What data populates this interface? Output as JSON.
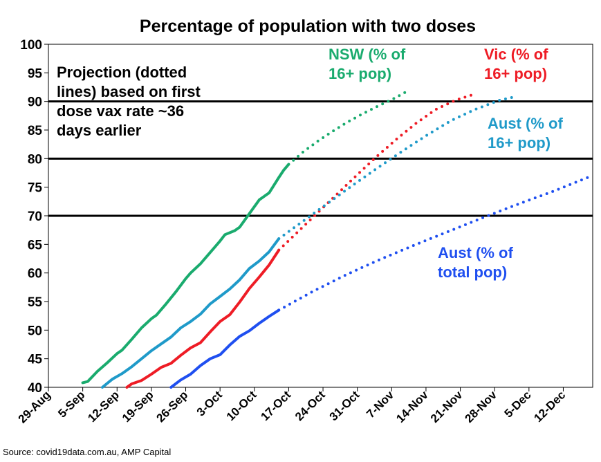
{
  "chart_data": {
    "type": "line",
    "title": "Percentage of population with two doses",
    "source": "Source: covid19data.com.au, AMP Capital",
    "x_axis": {
      "type": "date",
      "range": [
        "2021-08-29",
        "2021-12-18"
      ],
      "ticks": [
        {
          "date": "2021-08-29",
          "label": "29-Aug"
        },
        {
          "date": "2021-09-05",
          "label": "5-Sep"
        },
        {
          "date": "2021-09-12",
          "label": "12-Sep"
        },
        {
          "date": "2021-09-19",
          "label": "19-Sep"
        },
        {
          "date": "2021-09-26",
          "label": "26-Sep"
        },
        {
          "date": "2021-10-03",
          "label": "3-Oct"
        },
        {
          "date": "2021-10-10",
          "label": "10-Oct"
        },
        {
          "date": "2021-10-17",
          "label": "17-Oct"
        },
        {
          "date": "2021-10-24",
          "label": "24-Oct"
        },
        {
          "date": "2021-10-31",
          "label": "31-Oct"
        },
        {
          "date": "2021-11-07",
          "label": "7-Nov"
        },
        {
          "date": "2021-11-14",
          "label": "14-Nov"
        },
        {
          "date": "2021-11-21",
          "label": "21-Nov"
        },
        {
          "date": "2021-11-28",
          "label": "28-Nov"
        },
        {
          "date": "2021-12-05",
          "label": "5-Dec"
        },
        {
          "date": "2021-12-12",
          "label": "12-Dec"
        }
      ]
    },
    "y_axis": {
      "range": [
        40,
        100
      ],
      "ticks": [
        "40",
        "45",
        "50",
        "55",
        "60",
        "65",
        "70",
        "75",
        "80",
        "85",
        "90",
        "95",
        "100"
      ]
    },
    "grid": false,
    "reference_lines": [
      70,
      80,
      90
    ],
    "series": [
      {
        "name": "NSW (% of 16+ pop)",
        "color": "#1aab6e",
        "actual": [
          [
            "2021-09-05",
            40.8
          ],
          [
            "2021-09-06",
            41.0
          ],
          [
            "2021-09-08",
            42.8
          ],
          [
            "2021-09-10",
            44.3
          ],
          [
            "2021-09-12",
            45.9
          ],
          [
            "2021-09-13",
            46.5
          ],
          [
            "2021-09-15",
            48.4
          ],
          [
            "2021-09-17",
            50.4
          ],
          [
            "2021-09-19",
            52.0
          ],
          [
            "2021-09-20",
            52.6
          ],
          [
            "2021-09-22",
            54.6
          ],
          [
            "2021-09-24",
            56.7
          ],
          [
            "2021-09-26",
            59.0
          ],
          [
            "2021-09-27",
            60.0
          ],
          [
            "2021-09-29",
            61.6
          ],
          [
            "2021-10-01",
            63.6
          ],
          [
            "2021-10-03",
            65.6
          ],
          [
            "2021-10-04",
            66.7
          ],
          [
            "2021-10-06",
            67.4
          ],
          [
            "2021-10-07",
            68.0
          ],
          [
            "2021-10-09",
            70.4
          ],
          [
            "2021-10-11",
            72.8
          ],
          [
            "2021-10-13",
            74.0
          ],
          [
            "2021-10-15",
            76.7
          ],
          [
            "2021-10-16",
            78.0
          ],
          [
            "2021-10-17",
            79.0
          ]
        ],
        "projection": [
          [
            "2021-10-17",
            79.0
          ],
          [
            "2021-10-20",
            81.2
          ],
          [
            "2021-10-23",
            83.1
          ],
          [
            "2021-10-26",
            84.8
          ],
          [
            "2021-10-29",
            86.4
          ],
          [
            "2021-11-01",
            87.8
          ],
          [
            "2021-11-04",
            89.1
          ],
          [
            "2021-11-07",
            90.3
          ],
          [
            "2021-11-10",
            91.7
          ]
        ]
      },
      {
        "name": "Vic (% of 16+ pop)",
        "color": "#ee1c25",
        "actual": [
          [
            "2021-09-14",
            40.0
          ],
          [
            "2021-09-15",
            40.6
          ],
          [
            "2021-09-17",
            41.2
          ],
          [
            "2021-09-19",
            42.3
          ],
          [
            "2021-09-21",
            43.5
          ],
          [
            "2021-09-23",
            44.2
          ],
          [
            "2021-09-25",
            45.6
          ],
          [
            "2021-09-27",
            46.9
          ],
          [
            "2021-09-29",
            47.8
          ],
          [
            "2021-10-01",
            49.7
          ],
          [
            "2021-10-03",
            51.5
          ],
          [
            "2021-10-05",
            52.7
          ],
          [
            "2021-10-07",
            54.9
          ],
          [
            "2021-10-09",
            57.3
          ],
          [
            "2021-10-11",
            59.3
          ],
          [
            "2021-10-13",
            61.4
          ],
          [
            "2021-10-15",
            64.0
          ]
        ],
        "projection": [
          [
            "2021-10-15",
            64.0
          ],
          [
            "2021-10-19",
            67.3
          ],
          [
            "2021-10-23",
            70.6
          ],
          [
            "2021-10-27",
            73.9
          ],
          [
            "2021-10-31",
            77.2
          ],
          [
            "2021-11-04",
            80.4
          ],
          [
            "2021-11-08",
            83.4
          ],
          [
            "2021-11-12",
            86.2
          ],
          [
            "2021-11-16",
            88.6
          ],
          [
            "2021-11-20",
            90.2
          ],
          [
            "2021-11-24",
            91.3
          ]
        ]
      },
      {
        "name": "Aust (% of 16+ pop)",
        "color": "#1f9ac9",
        "actual": [
          [
            "2021-09-09",
            40.0
          ],
          [
            "2021-09-11",
            41.4
          ],
          [
            "2021-09-13",
            42.4
          ],
          [
            "2021-09-15",
            43.6
          ],
          [
            "2021-09-17",
            45.0
          ],
          [
            "2021-09-19",
            46.4
          ],
          [
            "2021-09-21",
            47.6
          ],
          [
            "2021-09-23",
            48.8
          ],
          [
            "2021-09-25",
            50.4
          ],
          [
            "2021-09-27",
            51.5
          ],
          [
            "2021-09-29",
            52.8
          ],
          [
            "2021-10-01",
            54.6
          ],
          [
            "2021-10-03",
            55.9
          ],
          [
            "2021-10-05",
            57.2
          ],
          [
            "2021-10-07",
            58.8
          ],
          [
            "2021-10-09",
            60.8
          ],
          [
            "2021-10-11",
            62.1
          ],
          [
            "2021-10-13",
            63.7
          ],
          [
            "2021-10-15",
            66.0
          ]
        ],
        "projection": [
          [
            "2021-10-15",
            66.0
          ],
          [
            "2021-10-20",
            69.1
          ],
          [
            "2021-10-25",
            72.2
          ],
          [
            "2021-10-30",
            75.3
          ],
          [
            "2021-11-04",
            78.3
          ],
          [
            "2021-11-09",
            81.2
          ],
          [
            "2021-11-14",
            84.0
          ],
          [
            "2021-11-19",
            86.6
          ],
          [
            "2021-11-24",
            88.6
          ],
          [
            "2021-11-29",
            90.2
          ],
          [
            "2021-12-02",
            90.8
          ]
        ]
      },
      {
        "name": "Aust (% of total pop)",
        "color": "#1f4ff0",
        "actual": [
          [
            "2021-09-23",
            40.0
          ],
          [
            "2021-09-25",
            41.3
          ],
          [
            "2021-09-27",
            42.3
          ],
          [
            "2021-09-29",
            43.8
          ],
          [
            "2021-10-01",
            45.0
          ],
          [
            "2021-10-03",
            45.7
          ],
          [
            "2021-10-05",
            47.4
          ],
          [
            "2021-10-07",
            48.9
          ],
          [
            "2021-10-09",
            49.9
          ],
          [
            "2021-10-11",
            51.2
          ],
          [
            "2021-10-13",
            52.4
          ],
          [
            "2021-10-15",
            53.5
          ]
        ],
        "projection": [
          [
            "2021-10-15",
            53.5
          ],
          [
            "2021-10-22",
            56.8
          ],
          [
            "2021-10-29",
            59.8
          ],
          [
            "2021-11-05",
            62.5
          ],
          [
            "2021-11-12",
            65.0
          ],
          [
            "2021-11-19",
            67.4
          ],
          [
            "2021-11-26",
            69.8
          ],
          [
            "2021-12-03",
            72.1
          ],
          [
            "2021-12-10",
            74.3
          ],
          [
            "2021-12-17",
            76.7
          ]
        ]
      }
    ],
    "annotations": [
      {
        "lines": [
          "Projection (dotted",
          "lines) based on first",
          "dose vax rate ~36",
          "days earlier"
        ],
        "color": "#000000"
      },
      {
        "lines": [
          "NSW (% of",
          "16+ pop)"
        ],
        "color": "#1aab6e"
      },
      {
        "lines": [
          "Vic (% of",
          "16+ pop)"
        ],
        "color": "#ee1c25"
      },
      {
        "lines": [
          "Aust (% of",
          "16+ pop)"
        ],
        "color": "#1f9ac9"
      },
      {
        "lines": [
          "Aust (% of",
          "total pop)"
        ],
        "color": "#1f4ff0"
      }
    ]
  }
}
